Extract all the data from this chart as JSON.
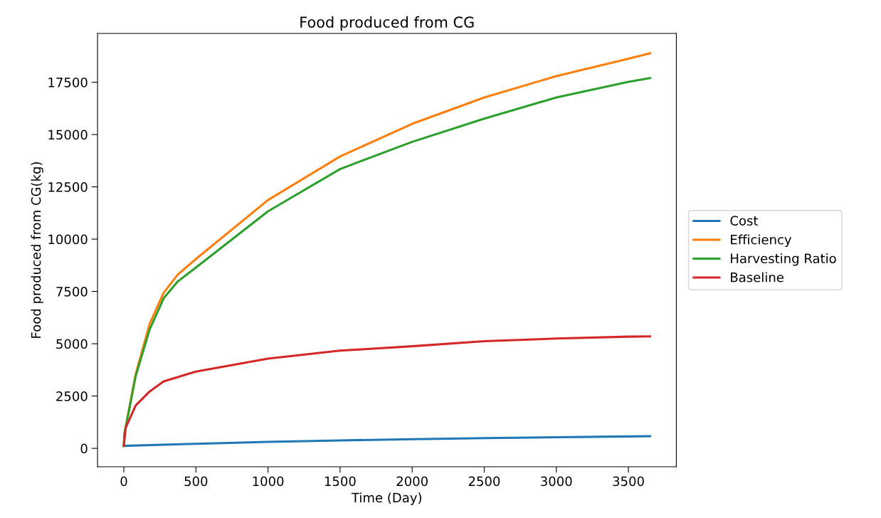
{
  "chart_data": {
    "type": "line",
    "title": "Food produced from CG",
    "xlabel": "Time (Day)",
    "ylabel": "Food produced from CG(kg)",
    "xlim": [
      -182.5,
      3832.5
    ],
    "xticks": [
      0,
      500,
      1000,
      1500,
      2000,
      2500,
      3000,
      3500
    ],
    "ylim": [
      -880,
      19830
    ],
    "yticks": [
      0,
      2500,
      5000,
      7500,
      10000,
      12500,
      15000,
      17500
    ],
    "grid": false,
    "legend": "right",
    "line_style": "solid",
    "marker": "none",
    "series": [
      {
        "name": "Cost",
        "color": "#1f77b4",
        "x": [
          0,
          500,
          1000,
          1500,
          2000,
          2500,
          3000,
          3500,
          3650
        ],
        "values": [
          120,
          220,
          310,
          380,
          440,
          490,
          530,
          570,
          580
        ]
      },
      {
        "name": "Efficiency",
        "color": "#ff7f0e",
        "x": [
          0,
          4,
          82,
          179,
          276,
          373,
          500,
          1000,
          1500,
          2000,
          2500,
          3000,
          3500,
          3650
        ],
        "values": [
          120,
          700,
          3540,
          5950,
          7430,
          8300,
          9050,
          11870,
          13950,
          15510,
          16770,
          17790,
          18620,
          18880
        ]
      },
      {
        "name": "Harvesting Ratio",
        "color": "#2ca02c",
        "x": [
          0,
          4,
          82,
          179,
          276,
          373,
          500,
          1000,
          1500,
          2000,
          2500,
          3000,
          3500,
          3650
        ],
        "values": [
          120,
          680,
          3450,
          5680,
          7170,
          7970,
          8640,
          11330,
          13350,
          14650,
          15760,
          16770,
          17520,
          17700
        ]
      },
      {
        "name": "Baseline",
        "color": "#d62728",
        "x": [
          0,
          13,
          82,
          179,
          276,
          500,
          1000,
          1500,
          2000,
          2500,
          3000,
          3500,
          3650
        ],
        "values": [
          120,
          990,
          2050,
          2720,
          3200,
          3670,
          4290,
          4670,
          4880,
          5120,
          5250,
          5340,
          5350
        ]
      }
    ]
  }
}
